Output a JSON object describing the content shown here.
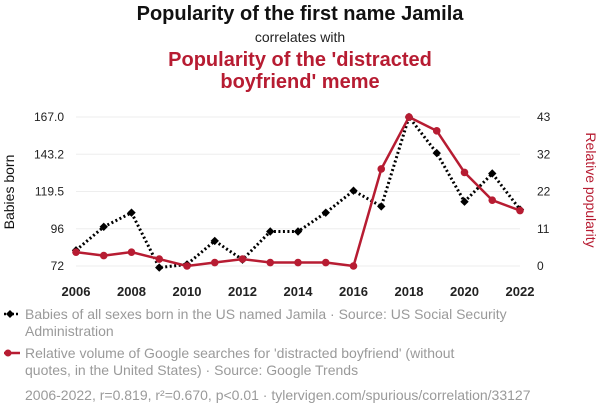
{
  "colors": {
    "series1": "#000000",
    "series2": "#b71c32",
    "muted": "#9a9a9a",
    "grid": "#eeeeee"
  },
  "header": {
    "title": "Popularity of the first name Jamila",
    "connector": "correlates with",
    "subtitle_lines": [
      "Popularity of the 'distracted",
      "boyfriend' meme"
    ]
  },
  "legend": {
    "entries": [
      {
        "lines": [
          "Babies of all sexes born in the US named Jamila · Source: US Social Security",
          "Administration"
        ]
      },
      {
        "lines": [
          "Relative volume of Google searches for 'distracted boyfriend' (without",
          "quotes, in the United States) · Source: Google Trends"
        ]
      }
    ]
  },
  "footer": {
    "text": "2006-2022, r=0.819, r²=0.670, p<0.01 · tylervigen.com/spurious/correlation/33127"
  },
  "chart_data": {
    "type": "line",
    "x": [
      2006,
      2007,
      2008,
      2009,
      2010,
      2011,
      2012,
      2013,
      2014,
      2015,
      2016,
      2017,
      2018,
      2019,
      2020,
      2021,
      2022
    ],
    "xlim": [
      2006,
      2022
    ],
    "x_ticks": [
      "2006",
      "2008",
      "2010",
      "2012",
      "2014",
      "2016",
      "2018",
      "2020",
      "2022"
    ],
    "y_left": {
      "label": "Babies born",
      "lim": [
        72,
        167
      ],
      "ticks": [
        "72",
        "96",
        "119.5",
        "143.2",
        "167.0"
      ]
    },
    "y_right": {
      "label": "Relative popularity",
      "lim": [
        0,
        43
      ],
      "ticks": [
        "0",
        "11",
        "22",
        "32",
        "43"
      ]
    },
    "series": [
      {
        "name": "Babies of all sexes born in the US named Jamila",
        "axis": "left",
        "style": "dotted",
        "marker": "diamond",
        "values": [
          82,
          97,
          106,
          71,
          73,
          88,
          76,
          94,
          94,
          106,
          120,
          110,
          167,
          144,
          113,
          131,
          108
        ]
      },
      {
        "name": "Relative volume of Google searches for 'distracted boyfriend'",
        "axis": "right",
        "style": "solid",
        "marker": "circle",
        "values": [
          4,
          3,
          4,
          2,
          0,
          1,
          2,
          1,
          1,
          1,
          0,
          28,
          43,
          39,
          27,
          19,
          16
        ]
      }
    ]
  }
}
